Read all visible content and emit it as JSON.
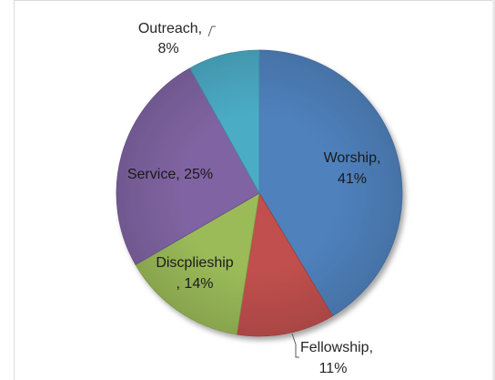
{
  "chart_data": {
    "type": "pie",
    "title": "",
    "categories": [
      "Worship",
      "Fellowship",
      "Discplieship",
      "Service",
      "Outreach"
    ],
    "values": [
      41,
      11,
      14,
      25,
      8
    ],
    "value_unit": "%",
    "colors": {
      "Worship": "#4f81bd",
      "Fellowship": "#c0504d",
      "Discplieship": "#9bbb59",
      "Service": "#8064a2",
      "Outreach": "#4bacc6"
    },
    "legend": "none",
    "labels": {
      "Worship": [
        "Worship,",
        "41%"
      ],
      "Fellowship": [
        "Fellowship,",
        "11%"
      ],
      "Discplieship": [
        "Discplieship",
        ", 14%"
      ],
      "Service": [
        "Service, 25%"
      ],
      "Outreach": [
        "Outreach,",
        "8%"
      ]
    }
  }
}
